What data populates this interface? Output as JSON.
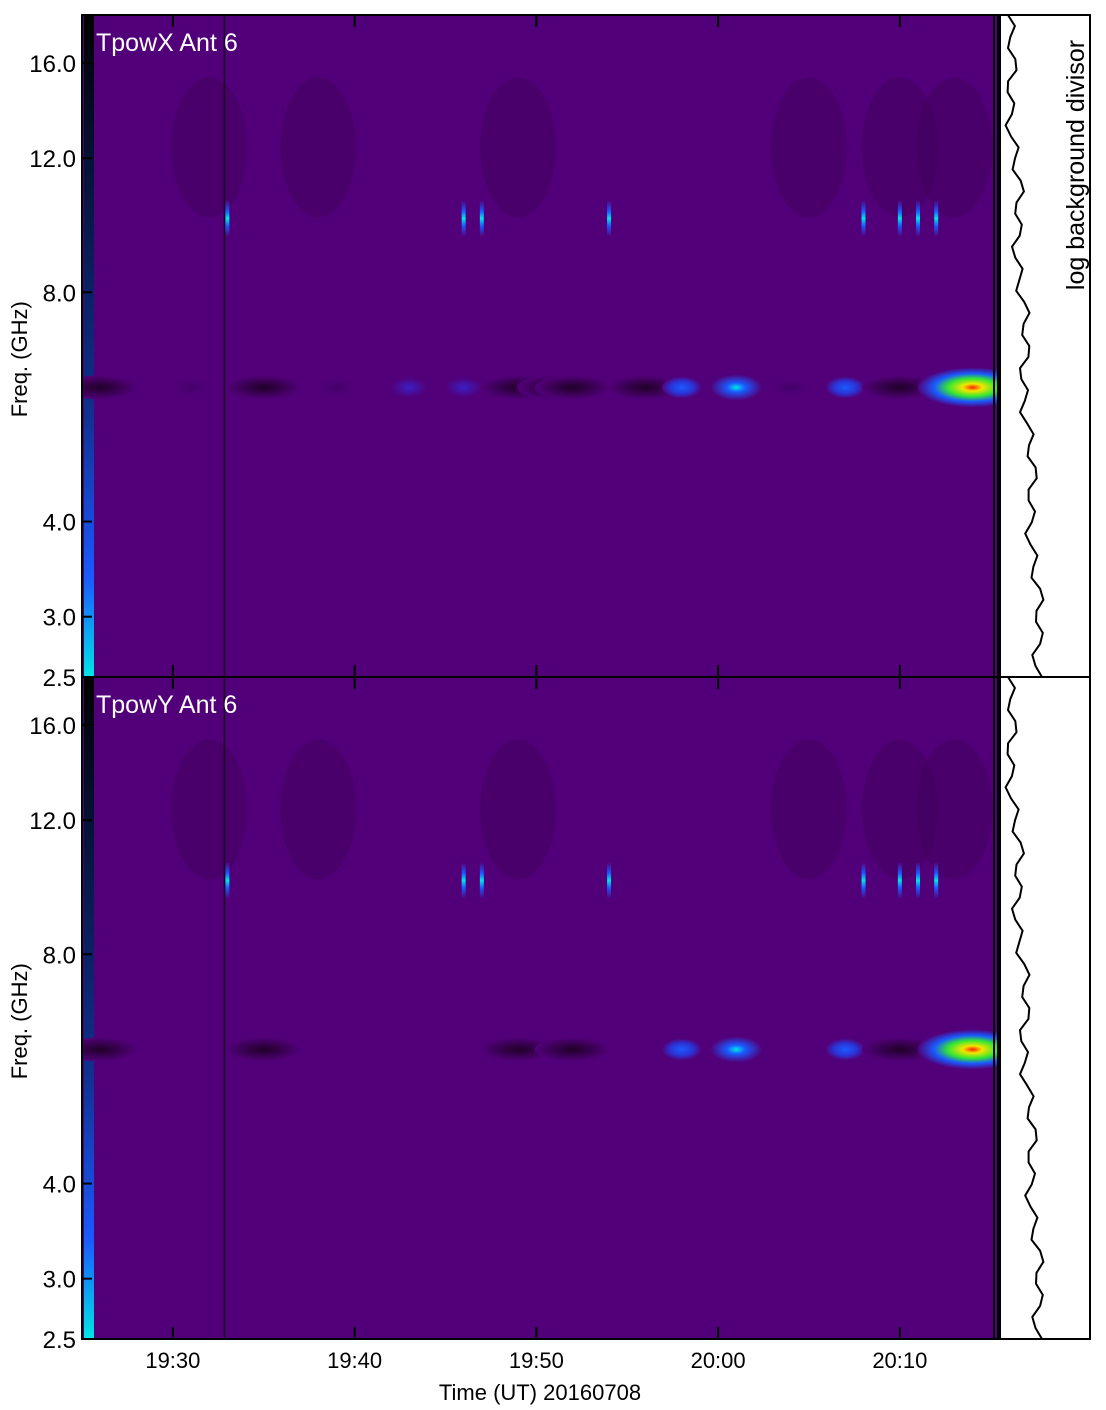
{
  "chart_data": {
    "type": "heatmap",
    "xlabel": "Time (UT) 20160708",
    "ylabel": "Freq. (GHz)",
    "side_panel_label": "log background divisor",
    "x_range_minutes": [
      "19:25",
      "20:15"
    ],
    "x_ticks": [
      "19:30",
      "19:40",
      "19:50",
      "20:00",
      "20:10"
    ],
    "y_range": [
      2.5,
      18.5
    ],
    "y_scale": "log",
    "y_ticks": [
      "2.5",
      "3.0",
      "4.0",
      "8.0",
      "12.0",
      "16.0"
    ],
    "grid": false,
    "colormap_hex": {
      "background": "#52007a",
      "dark": "#200028",
      "blue": "#1a5aff",
      "cyan": "#00e6e6",
      "green": "#33e633",
      "yellow": "#f2e600",
      "red": "#ff2200"
    },
    "panels": [
      {
        "title": "TpowX Ant 6",
        "features": {
          "band_6ghz_blobs": [
            {
              "time": "19:26",
              "level": "dark"
            },
            {
              "time": "19:31",
              "level": "faint"
            },
            {
              "time": "19:35",
              "level": "dark"
            },
            {
              "time": "19:39",
              "level": "faint"
            },
            {
              "time": "19:43",
              "level": "blue-faint"
            },
            {
              "time": "19:46",
              "level": "blue-faint"
            },
            {
              "time": "19:49",
              "level": "dark"
            },
            {
              "time": "19:51",
              "level": "dark"
            },
            {
              "time": "19:52",
              "level": "dark"
            },
            {
              "time": "19:56",
              "level": "dark"
            },
            {
              "time": "19:58",
              "level": "blue"
            },
            {
              "time": "20:01",
              "level": "blue-cyan"
            },
            {
              "time": "20:04",
              "level": "faint"
            },
            {
              "time": "20:07",
              "level": "blue"
            },
            {
              "time": "20:10",
              "level": "dark"
            },
            {
              "time": "20:14",
              "level": "yellow-red"
            }
          ],
          "band_10ghz_spikes": [
            "19:33",
            "19:46",
            "19:47",
            "19:54",
            "20:08",
            "20:10",
            "20:11",
            "20:12"
          ]
        }
      },
      {
        "title": "TpowY Ant 6",
        "features": {
          "band_6ghz_blobs": [
            {
              "time": "19:26",
              "level": "dark"
            },
            {
              "time": "19:35",
              "level": "dark"
            },
            {
              "time": "19:49",
              "level": "dark"
            },
            {
              "time": "19:52",
              "level": "dark"
            },
            {
              "time": "19:58",
              "level": "blue"
            },
            {
              "time": "20:01",
              "level": "blue-cyan"
            },
            {
              "time": "20:07",
              "level": "blue"
            },
            {
              "time": "20:10",
              "level": "dark"
            },
            {
              "time": "20:14",
              "level": "yellow-red"
            }
          ],
          "band_10ghz_spikes": [
            "19:33",
            "19:46",
            "19:47",
            "19:54",
            "20:08",
            "20:10",
            "20:11",
            "20:12"
          ]
        }
      }
    ]
  }
}
